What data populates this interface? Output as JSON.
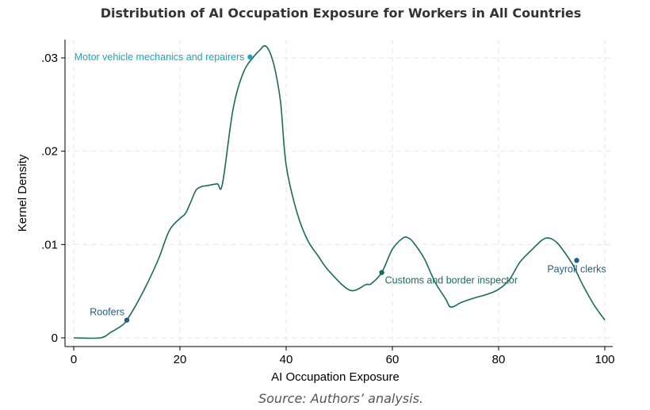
{
  "chart_data": {
    "type": "line",
    "title": "Distribution of AI Occupation Exposure for Workers in All Countries",
    "source": "Source: Authors’ analysis.",
    "xlabel": "AI Occupation Exposure",
    "ylabel": "Kernel Density",
    "xlim": [
      0,
      100
    ],
    "ylim": [
      -0.0008,
      0.0325
    ],
    "xticks": [
      0,
      20,
      40,
      60,
      80,
      100
    ],
    "xtick_labels": [
      "0",
      "20",
      "40",
      "60",
      "80",
      "100"
    ],
    "yticks": [
      0,
      0.01,
      0.02,
      0.03
    ],
    "ytick_labels": [
      "0",
      ".01",
      ".02",
      ".03"
    ],
    "grid": true,
    "line_color": "#1a6b5c",
    "series": [
      {
        "x": [
          0,
          5,
          7,
          9,
          10,
          12,
          14,
          16,
          18,
          20,
          21,
          22,
          23,
          24,
          25,
          27,
          28,
          30,
          32,
          34,
          35,
          36,
          37,
          38,
          39,
          40,
          42,
          44,
          46,
          48,
          52,
          55,
          56,
          58,
          60,
          62,
          63,
          64,
          66,
          68,
          70,
          71,
          73,
          75,
          78,
          80,
          82,
          84,
          86,
          88,
          89,
          90,
          91,
          92,
          94,
          96,
          98,
          100
        ],
        "y": [
          0,
          0,
          0.0006,
          0.0013,
          0.0019,
          0.0038,
          0.006,
          0.0085,
          0.0115,
          0.0128,
          0.0133,
          0.0145,
          0.0158,
          0.0162,
          0.0163,
          0.0165,
          0.0165,
          0.0245,
          0.0285,
          0.0302,
          0.0308,
          0.0313,
          0.0305,
          0.0285,
          0.025,
          0.0185,
          0.0135,
          0.0105,
          0.0088,
          0.0072,
          0.0051,
          0.0057,
          0.0058,
          0.007,
          0.0095,
          0.0107,
          0.0107,
          0.0102,
          0.0085,
          0.006,
          0.0042,
          0.0033,
          0.0038,
          0.0042,
          0.0047,
          0.0052,
          0.0062,
          0.0081,
          0.0093,
          0.0104,
          0.0107,
          0.0106,
          0.0102,
          0.0095,
          0.0078,
          0.0055,
          0.0035,
          0.0019
        ]
      }
    ],
    "annotations": [
      {
        "label": "Roofers",
        "x": 10,
        "y": 0.0019,
        "color": "#1f5f8b",
        "anchor": "end",
        "dx": -3,
        "dy": -6
      },
      {
        "label": "Motor vehicle mechanics and repairers",
        "x": 33.2,
        "y": 0.0301,
        "color": "#22a5b8",
        "anchor": "end",
        "dx": -7,
        "dy": 4
      },
      {
        "label": "Customs and border inspector",
        "x": 58,
        "y": 0.007,
        "color": "#1a6b5c",
        "anchor": "start",
        "dx": 4,
        "dy": 14
      },
      {
        "label": "Payroll clerks",
        "x": 94.7,
        "y": 0.0083,
        "color": "#1f5f8b",
        "anchor": "middle",
        "dx": 0,
        "dy": 15
      }
    ]
  }
}
